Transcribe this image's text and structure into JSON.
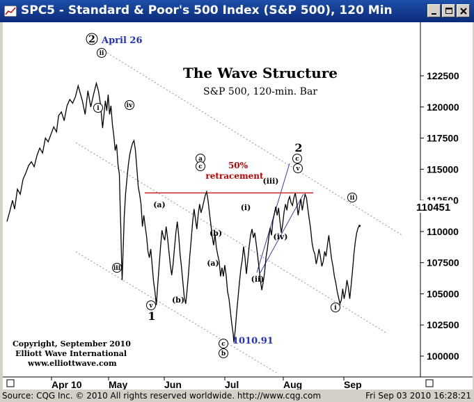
{
  "window": {
    "title": "SPC5 - Standard & Poor's 500 Index (S&P 500), 120 Min",
    "minimize_icon": "minimize-icon",
    "restore_icon": "restore-icon",
    "close_icon": "close-icon"
  },
  "status": {
    "left": "Source: CQG Inc. © 2010 All rights reserved worldwide.  http://www.cqg.com",
    "right": "Fri Sep 03 2010 16:28:21"
  },
  "annotations": {
    "title": "The Wave Structure",
    "subtitle": "S&P 500, 120-min. Bar",
    "copyright_line1": "Copyright, September 2010",
    "copyright_line2": "Elliott Wave International",
    "copyright_line3": "www.elliottwave.com",
    "low_label": "1010.91",
    "peak_date": "April 26",
    "fifty_pct": "50%",
    "retracement": "retracement",
    "last_price": "110451"
  },
  "chart_data": {
    "type": "line",
    "title": "The Wave Structure",
    "subtitle": "S&P 500, 120-min. Bar",
    "xlabel": "",
    "ylabel": "",
    "x_ticks": [
      "Apr 10",
      "May",
      "Jun",
      "Jul",
      "Aug",
      "Sep"
    ],
    "y_ticks": [
      100000,
      102500,
      105000,
      107500,
      110000,
      112500,
      115000,
      117500,
      120000,
      122500
    ],
    "ylim": [
      99000,
      124500
    ],
    "last_value": 110451,
    "grid": false,
    "series": [
      {
        "points": [
          [
            0,
            110800
          ],
          [
            4,
            111600
          ],
          [
            8,
            112500
          ],
          [
            11,
            111800
          ],
          [
            15,
            113400
          ],
          [
            19,
            113000
          ],
          [
            23,
            114200
          ],
          [
            27,
            114700
          ],
          [
            31,
            115300
          ],
          [
            35,
            115600
          ],
          [
            39,
            115200
          ],
          [
            43,
            116100
          ],
          [
            47,
            116700
          ],
          [
            51,
            116300
          ],
          [
            55,
            117500
          ],
          [
            59,
            117200
          ],
          [
            63,
            117800
          ],
          [
            67,
            118400
          ],
          [
            71,
            118000
          ],
          [
            74,
            119300
          ],
          [
            78,
            119600
          ],
          [
            82,
            118900
          ],
          [
            86,
            120100
          ],
          [
            90,
            120600
          ],
          [
            94,
            120300
          ],
          [
            98,
            120800
          ],
          [
            102,
            121700
          ],
          [
            105,
            121100
          ],
          [
            108,
            120500
          ],
          [
            112,
            119400
          ],
          [
            116,
            121300
          ],
          [
            120,
            120000
          ],
          [
            124,
            121000
          ],
          [
            128,
            121900
          ],
          [
            131,
            121300
          ],
          [
            134,
            120200
          ],
          [
            137,
            118300
          ],
          [
            139,
            119400
          ],
          [
            141,
            120500
          ],
          [
            143,
            119700
          ],
          [
            145,
            121000
          ],
          [
            147,
            119400
          ],
          [
            149,
            120100
          ],
          [
            151,
            118600
          ],
          [
            153,
            117700
          ],
          [
            155,
            116500
          ],
          [
            157,
            117000
          ],
          [
            159,
            115400
          ],
          [
            161,
            114600
          ],
          [
            162,
            112300
          ],
          [
            163,
            110400
          ],
          [
            164,
            108000
          ],
          [
            165,
            106100
          ],
          [
            166,
            107800
          ],
          [
            167,
            109500
          ],
          [
            168,
            111200
          ],
          [
            170,
            113100
          ],
          [
            172,
            114300
          ],
          [
            174,
            115400
          ],
          [
            176,
            116200
          ],
          [
            178,
            116700
          ],
          [
            180,
            117100
          ],
          [
            182,
            117300
          ],
          [
            184,
            116500
          ],
          [
            186,
            115100
          ],
          [
            188,
            113600
          ],
          [
            190,
            113000
          ],
          [
            192,
            112200
          ],
          [
            194,
            110400
          ],
          [
            196,
            111300
          ],
          [
            198,
            110400
          ],
          [
            200,
            109600
          ],
          [
            202,
            108400
          ],
          [
            204,
            107900
          ],
          [
            206,
            108600
          ],
          [
            208,
            107300
          ],
          [
            210,
            106000
          ],
          [
            212,
            105200
          ],
          [
            214,
            104100
          ],
          [
            216,
            105700
          ],
          [
            218,
            107300
          ],
          [
            220,
            108800
          ],
          [
            222,
            110100
          ],
          [
            224,
            109600
          ],
          [
            226,
            109300
          ],
          [
            228,
            110400
          ],
          [
            230,
            109500
          ],
          [
            232,
            108400
          ],
          [
            234,
            107300
          ],
          [
            236,
            106500
          ],
          [
            238,
            107400
          ],
          [
            240,
            108700
          ],
          [
            242,
            109900
          ],
          [
            244,
            110800
          ],
          [
            246,
            109700
          ],
          [
            248,
            108200
          ],
          [
            250,
            107100
          ],
          [
            252,
            105900
          ],
          [
            254,
            104700
          ],
          [
            256,
            104200
          ],
          [
            258,
            105300
          ],
          [
            260,
            106600
          ],
          [
            262,
            108100
          ],
          [
            264,
            109400
          ],
          [
            266,
            110800
          ],
          [
            268,
            111800
          ],
          [
            270,
            111000
          ],
          [
            272,
            110200
          ],
          [
            274,
            111400
          ],
          [
            276,
            112200
          ],
          [
            278,
            111500
          ],
          [
            280,
            111900
          ],
          [
            282,
            112400
          ],
          [
            284,
            112900
          ],
          [
            286,
            113200
          ],
          [
            288,
            112500
          ],
          [
            290,
            111500
          ],
          [
            292,
            110600
          ],
          [
            294,
            109600
          ],
          [
            296,
            108900
          ],
          [
            298,
            109800
          ],
          [
            300,
            108700
          ],
          [
            302,
            108100
          ],
          [
            304,
            107600
          ],
          [
            306,
            106400
          ],
          [
            308,
            107100
          ],
          [
            310,
            106400
          ],
          [
            312,
            107300
          ],
          [
            314,
            106500
          ],
          [
            316,
            105200
          ],
          [
            318,
            104600
          ],
          [
            320,
            103600
          ],
          [
            322,
            102600
          ],
          [
            324,
            101800
          ],
          [
            325,
            101100
          ],
          [
            327,
            102100
          ],
          [
            329,
            103500
          ],
          [
            331,
            104700
          ],
          [
            333,
            105900
          ],
          [
            335,
            107000
          ],
          [
            337,
            107700
          ],
          [
            339,
            108800
          ],
          [
            341,
            107900
          ],
          [
            343,
            106600
          ],
          [
            345,
            107700
          ],
          [
            347,
            108800
          ],
          [
            349,
            109700
          ],
          [
            351,
            110200
          ],
          [
            353,
            109500
          ],
          [
            355,
            109900
          ],
          [
            357,
            109000
          ],
          [
            359,
            108100
          ],
          [
            361,
            107100
          ],
          [
            363,
            106100
          ],
          [
            365,
            105300
          ],
          [
            367,
            105900
          ],
          [
            369,
            106700
          ],
          [
            371,
            107900
          ],
          [
            373,
            108600
          ],
          [
            375,
            109500
          ],
          [
            377,
            110300
          ],
          [
            379,
            109700
          ],
          [
            381,
            110900
          ],
          [
            383,
            111400
          ],
          [
            385,
            112000
          ],
          [
            387,
            111300
          ],
          [
            389,
            111900
          ],
          [
            391,
            110800
          ],
          [
            393,
            109900
          ],
          [
            395,
            110600
          ],
          [
            397,
            111600
          ],
          [
            399,
            112200
          ],
          [
            401,
            111700
          ],
          [
            403,
            112500
          ],
          [
            405,
            112800
          ],
          [
            407,
            112300
          ],
          [
            409,
            112100
          ],
          [
            411,
            112700
          ],
          [
            413,
            113100
          ],
          [
            415,
            112400
          ],
          [
            417,
            111300
          ],
          [
            419,
            112000
          ],
          [
            421,
            112600
          ],
          [
            423,
            111700
          ],
          [
            425,
            112400
          ],
          [
            427,
            113000
          ],
          [
            429,
            112700
          ],
          [
            431,
            111800
          ],
          [
            433,
            111000
          ],
          [
            435,
            110200
          ],
          [
            437,
            109100
          ],
          [
            439,
            108500
          ],
          [
            441,
            108200
          ],
          [
            443,
            107400
          ],
          [
            445,
            107900
          ],
          [
            447,
            108600
          ],
          [
            449,
            108000
          ],
          [
            451,
            107200
          ],
          [
            453,
            107600
          ],
          [
            455,
            108400
          ],
          [
            457,
            108000
          ],
          [
            459,
            108900
          ],
          [
            461,
            109700
          ],
          [
            463,
            108700
          ],
          [
            465,
            107800
          ],
          [
            467,
            107200
          ],
          [
            469,
            106400
          ],
          [
            471,
            105900
          ],
          [
            473,
            105200
          ],
          [
            475,
            104700
          ],
          [
            477,
            104200
          ],
          [
            479,
            104500
          ],
          [
            481,
            105400
          ],
          [
            483,
            104600
          ],
          [
            485,
            105200
          ],
          [
            487,
            106100
          ],
          [
            489,
            105500
          ],
          [
            491,
            104600
          ],
          [
            493,
            105700
          ],
          [
            495,
            106900
          ],
          [
            497,
            108200
          ],
          [
            499,
            109200
          ],
          [
            501,
            109900
          ],
          [
            503,
            110300
          ],
          [
            505,
            110451
          ]
        ]
      }
    ],
    "annotations": [
      {
        "text": "April 26",
        "x": 134,
        "y": 121900
      },
      {
        "text": "50% retracement",
        "y": 113100
      },
      {
        "text": "1010.91",
        "x": 325,
        "y": 101100
      }
    ]
  }
}
